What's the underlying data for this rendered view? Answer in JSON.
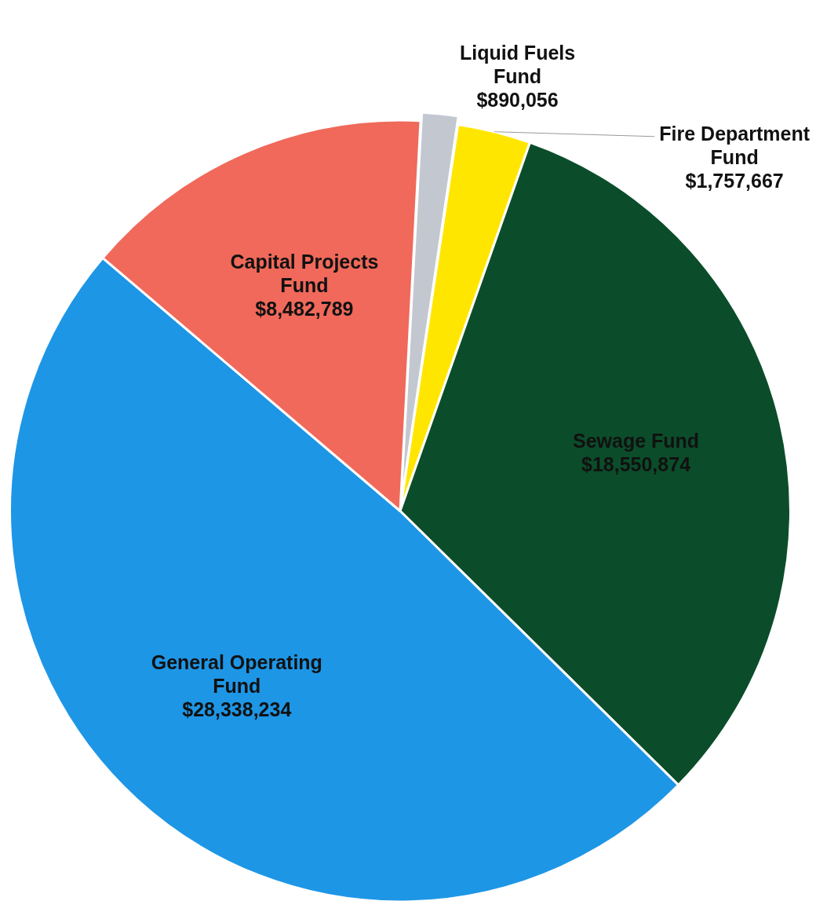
{
  "chart_data": {
    "type": "pie",
    "categories": [
      "Liquid Fuels Fund",
      "Fire Department Fund",
      "Sewage Fund",
      "General Operating Fund",
      "Capital Projects Fund"
    ],
    "values": [
      890056,
      1757667,
      18550874,
      28338234,
      8482789
    ],
    "value_labels": [
      "$890,056",
      "$1,757,667",
      "$18,550,874",
      "$28,338,234",
      "$8,482,789"
    ],
    "colors": [
      "#c3c7d0",
      "#ffe600",
      "#0b4d2a",
      "#1e96e6",
      "#f0695a"
    ],
    "legend": false
  }
}
